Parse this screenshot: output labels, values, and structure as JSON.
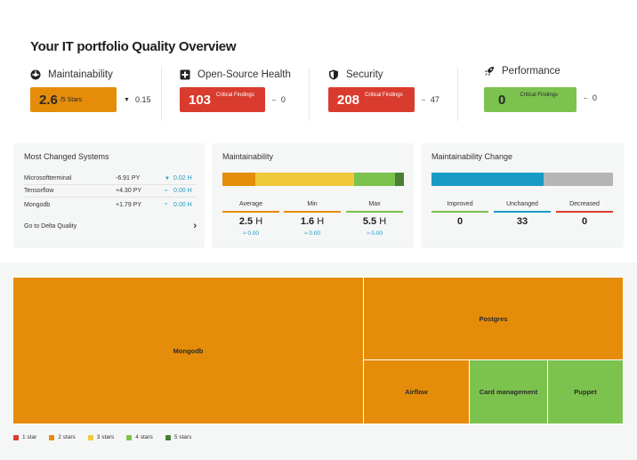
{
  "header": {
    "title": "Your IT portfolio Quality Overview"
  },
  "kpis": [
    {
      "label": "Maintainability",
      "icon": "gauge-icon",
      "value": "2.6",
      "unit_text": "/5 Stars",
      "color": "#e58c0a",
      "delta_arrow": "▼",
      "delta": "0.15"
    },
    {
      "label": "Open-Source Health",
      "icon": "medical-cross-icon",
      "value": "103",
      "unit_text": "Critical Findings",
      "color": "#d93c2e",
      "delta_arrow": "–",
      "delta": "0"
    },
    {
      "label": "Security",
      "icon": "shield-icon",
      "value": "208",
      "unit_text": "Critical Findings",
      "color": "#d93c2e",
      "delta_arrow": "–",
      "delta": "47"
    },
    {
      "label": "Performance",
      "icon": "rocket-icon",
      "value": "0",
      "unit_text": "Critical Findings",
      "color": "#7cc24e",
      "delta_arrow": "–",
      "delta": "0"
    }
  ],
  "most_changed": {
    "title": "Most Changed Systems",
    "rows": [
      {
        "name": "Microsoftterminal",
        "py": "-6.91 PY",
        "sym": "▼",
        "h": "0.02 H"
      },
      {
        "name": "Tensorflow",
        "py": "+4.30 PY",
        "sym": "≈",
        "h": "0.00 H"
      },
      {
        "name": "Mongodb",
        "py": "+1.79 PY",
        "sym": "≈",
        "h": "0.00 H"
      }
    ],
    "link": "Go to Delta Quality",
    "link_chevron": "›"
  },
  "maintainability": {
    "title": "Maintainability",
    "distribution": [
      {
        "fraction": 0.18,
        "color": "#e58c0a"
      },
      {
        "fraction": 0.545,
        "color": "#f0c93a"
      },
      {
        "fraction": 0.225,
        "color": "#7cc24e"
      },
      {
        "fraction": 0.05,
        "color": "#4a7f35"
      }
    ],
    "stats": [
      {
        "label": "Average",
        "value": "2.5",
        "unit": "H",
        "sub": "≈ 0.00",
        "color": "#e58c0a"
      },
      {
        "label": "Min",
        "value": "1.6",
        "unit": "H",
        "sub": "≈ 0.00",
        "color": "#e58c0a"
      },
      {
        "label": "Max",
        "value": "5.5",
        "unit": "H",
        "sub": "≈ 0.00",
        "color": "#7cc24e"
      }
    ]
  },
  "maintainability_change": {
    "title": "Maintainability Change",
    "distribution": [
      {
        "fraction": 0.62,
        "color": "#1a9bc6"
      },
      {
        "fraction": 0.38,
        "color": "#b5b5b5"
      }
    ],
    "stats": [
      {
        "label": "Improved",
        "value": "0",
        "color": "#7cc24e"
      },
      {
        "label": "Unchanged",
        "value": "33",
        "color": "#1a9bc6"
      },
      {
        "label": "Decreased",
        "value": "0",
        "color": "#d93c2e"
      }
    ]
  },
  "treemap": {
    "cells": [
      {
        "name": "Mongodb",
        "rating": "2 stars"
      },
      {
        "name": "Postgres",
        "rating": "2 stars"
      },
      {
        "name": "Airflow",
        "rating": "2 stars"
      },
      {
        "name": "Card management",
        "rating": "4 stars"
      },
      {
        "name": "Puppet",
        "rating": "4 stars"
      }
    ]
  },
  "legend": [
    {
      "label": "1 star",
      "color": "#d93c2e"
    },
    {
      "label": "2 stars",
      "color": "#e58c0a"
    },
    {
      "label": "3 stars",
      "color": "#f0c93a"
    },
    {
      "label": "4 stars",
      "color": "#7cc24e"
    },
    {
      "label": "5 stars",
      "color": "#4a7f35"
    }
  ]
}
